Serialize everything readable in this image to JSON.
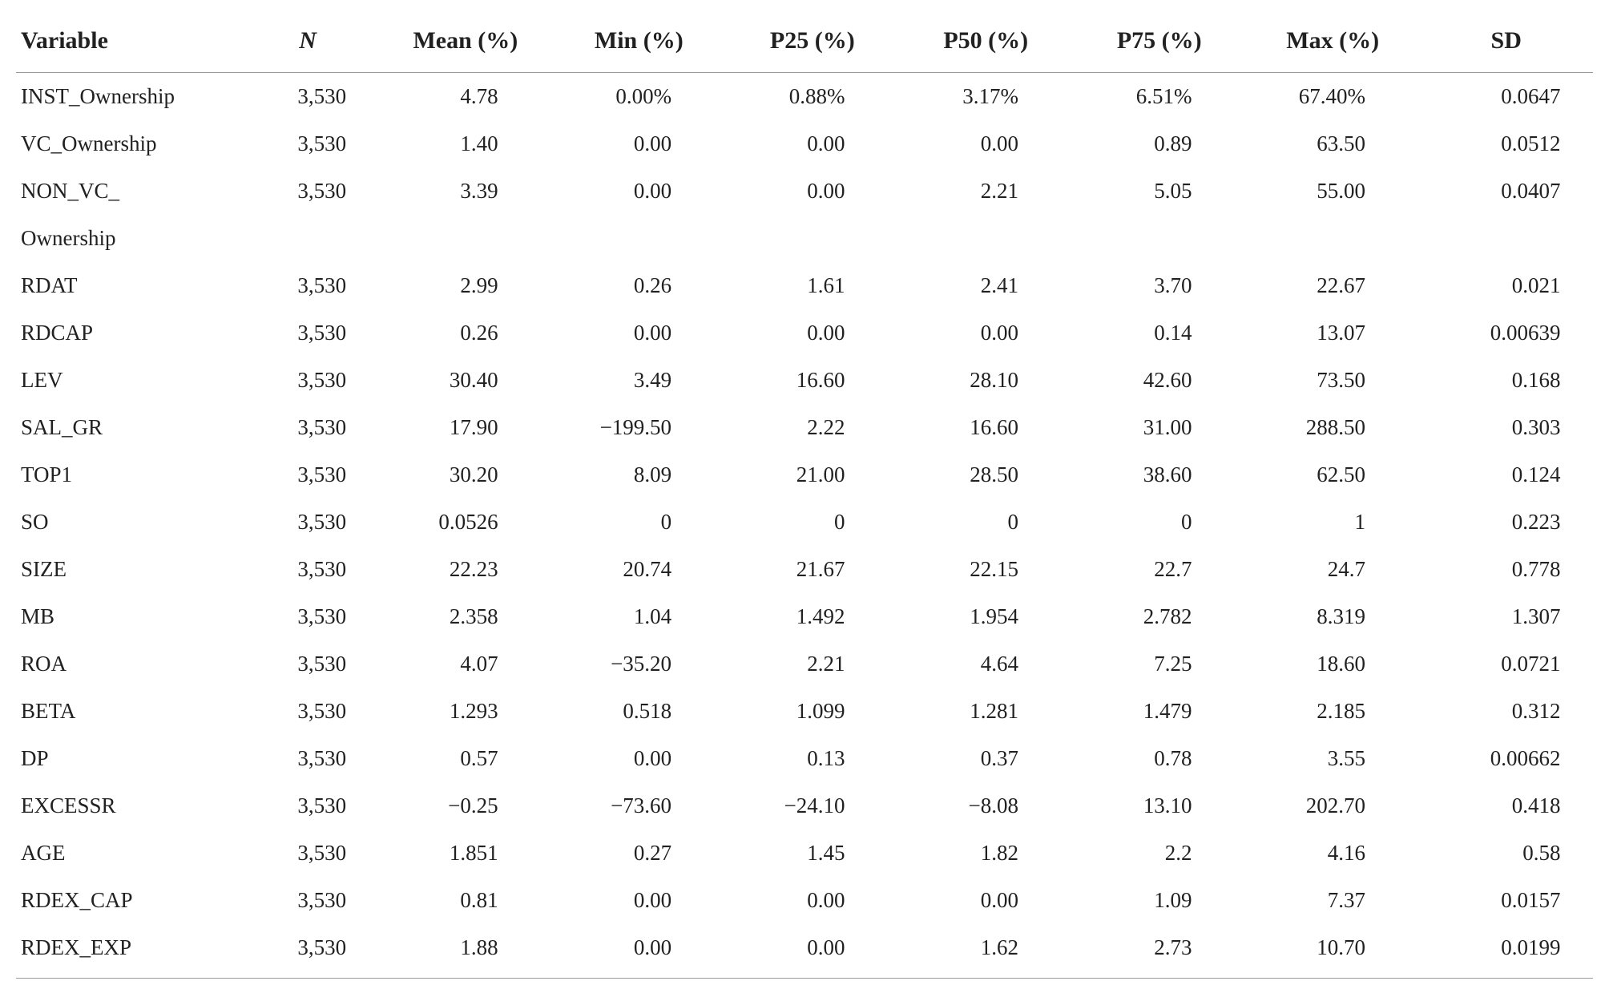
{
  "table": {
    "font_family": "Times New Roman",
    "text_color": "#212121",
    "bg_color": "#ffffff",
    "rule_color": "#9a9a9a",
    "header_fontsize": 30,
    "body_fontsize": 27,
    "columns": [
      {
        "key": "variable",
        "label": "Variable",
        "align": "left",
        "width_pct": 14,
        "italic": false
      },
      {
        "key": "n",
        "label": "N",
        "align": "center",
        "width_pct": 9,
        "italic": true
      },
      {
        "key": "mean",
        "label": "Mean (%)",
        "align": "center",
        "width_pct": 11,
        "italic": false
      },
      {
        "key": "min",
        "label": "Min (%)",
        "align": "center",
        "width_pct": 11,
        "italic": false
      },
      {
        "key": "p25",
        "label": "P25 (%)",
        "align": "center",
        "width_pct": 11,
        "italic": false
      },
      {
        "key": "p50",
        "label": "P50 (%)",
        "align": "center",
        "width_pct": 11,
        "italic": false
      },
      {
        "key": "p75",
        "label": "P75 (%)",
        "align": "center",
        "width_pct": 11,
        "italic": false
      },
      {
        "key": "max",
        "label": "Max (%)",
        "align": "center",
        "width_pct": 11,
        "italic": false
      },
      {
        "key": "sd",
        "label": "SD",
        "align": "center",
        "width_pct": 11,
        "italic": false
      }
    ],
    "rows": [
      {
        "variable": "INST_Ownership",
        "n": "3,530",
        "mean": "4.78",
        "min": "0.00%",
        "p25": "0.88%",
        "p50": "3.17%",
        "p75": "6.51%",
        "max": "67.40%",
        "sd": "0.0647"
      },
      {
        "variable": "VC_Ownership",
        "n": "3,530",
        "mean": "1.40",
        "min": "0.00",
        "p25": "0.00",
        "p50": "0.00",
        "p75": "0.89",
        "max": "63.50",
        "sd": "0.0512"
      },
      {
        "variable": "NON_VC_",
        "n": "3,530",
        "mean": "3.39",
        "min": "0.00",
        "p25": "0.00",
        "p50": "2.21",
        "p75": "5.05",
        "max": "55.00",
        "sd": "0.0407"
      },
      {
        "variable": "Ownership",
        "n": "",
        "mean": "",
        "min": "",
        "p25": "",
        "p50": "",
        "p75": "",
        "max": "",
        "sd": ""
      },
      {
        "variable": "RDAT",
        "n": "3,530",
        "mean": "2.99",
        "min": "0.26",
        "p25": "1.61",
        "p50": "2.41",
        "p75": "3.70",
        "max": "22.67",
        "sd": "0.021"
      },
      {
        "variable": "RDCAP",
        "n": "3,530",
        "mean": "0.26",
        "min": "0.00",
        "p25": "0.00",
        "p50": "0.00",
        "p75": "0.14",
        "max": "13.07",
        "sd": "0.00639"
      },
      {
        "variable": "LEV",
        "n": "3,530",
        "mean": "30.40",
        "min": "3.49",
        "p25": "16.60",
        "p50": "28.10",
        "p75": "42.60",
        "max": "73.50",
        "sd": "0.168"
      },
      {
        "variable": "SAL_GR",
        "n": "3,530",
        "mean": "17.90",
        "min": "−199.50",
        "p25": "2.22",
        "p50": "16.60",
        "p75": "31.00",
        "max": "288.50",
        "sd": "0.303"
      },
      {
        "variable": "TOP1",
        "n": "3,530",
        "mean": "30.20",
        "min": "8.09",
        "p25": "21.00",
        "p50": "28.50",
        "p75": "38.60",
        "max": "62.50",
        "sd": "0.124"
      },
      {
        "variable": "SO",
        "n": "3,530",
        "mean": "0.0526",
        "min": "0",
        "p25": "0",
        "p50": "0",
        "p75": "0",
        "max": "1",
        "sd": "0.223"
      },
      {
        "variable": "SIZE",
        "n": "3,530",
        "mean": "22.23",
        "min": "20.74",
        "p25": "21.67",
        "p50": "22.15",
        "p75": "22.7",
        "max": "24.7",
        "sd": "0.778"
      },
      {
        "variable": "MB",
        "n": "3,530",
        "mean": "2.358",
        "min": "1.04",
        "p25": "1.492",
        "p50": "1.954",
        "p75": "2.782",
        "max": "8.319",
        "sd": "1.307"
      },
      {
        "variable": "ROA",
        "n": "3,530",
        "mean": "4.07",
        "min": "−35.20",
        "p25": "2.21",
        "p50": "4.64",
        "p75": "7.25",
        "max": "18.60",
        "sd": "0.0721"
      },
      {
        "variable": "BETA",
        "n": "3,530",
        "mean": "1.293",
        "min": "0.518",
        "p25": "1.099",
        "p50": "1.281",
        "p75": "1.479",
        "max": "2.185",
        "sd": "0.312"
      },
      {
        "variable": "DP",
        "n": "3,530",
        "mean": "0.57",
        "min": "0.00",
        "p25": "0.13",
        "p50": "0.37",
        "p75": "0.78",
        "max": "3.55",
        "sd": "0.00662"
      },
      {
        "variable": "EXCESSR",
        "n": "3,530",
        "mean": "−0.25",
        "min": "−73.60",
        "p25": "−24.10",
        "p50": "−8.08",
        "p75": "13.10",
        "max": "202.70",
        "sd": "0.418"
      },
      {
        "variable": "AGE",
        "n": "3,530",
        "mean": "1.851",
        "min": "0.27",
        "p25": "1.45",
        "p50": "1.82",
        "p75": "2.2",
        "max": "4.16",
        "sd": "0.58"
      },
      {
        "variable": "RDEX_CAP",
        "n": "3,530",
        "mean": "0.81",
        "min": "0.00",
        "p25": "0.00",
        "p50": "0.00",
        "p75": "1.09",
        "max": "7.37",
        "sd": "0.0157"
      },
      {
        "variable": "RDEX_EXP",
        "n": "3,530",
        "mean": "1.88",
        "min": "0.00",
        "p25": "0.00",
        "p50": "1.62",
        "p75": "2.73",
        "max": "10.70",
        "sd": "0.0199"
      }
    ],
    "numeric_padding_ch": {
      "n": 3,
      "mean": 5,
      "min": 5,
      "p25": 5,
      "p50": 5,
      "p75": 5,
      "max": 5,
      "sd": 3
    }
  }
}
